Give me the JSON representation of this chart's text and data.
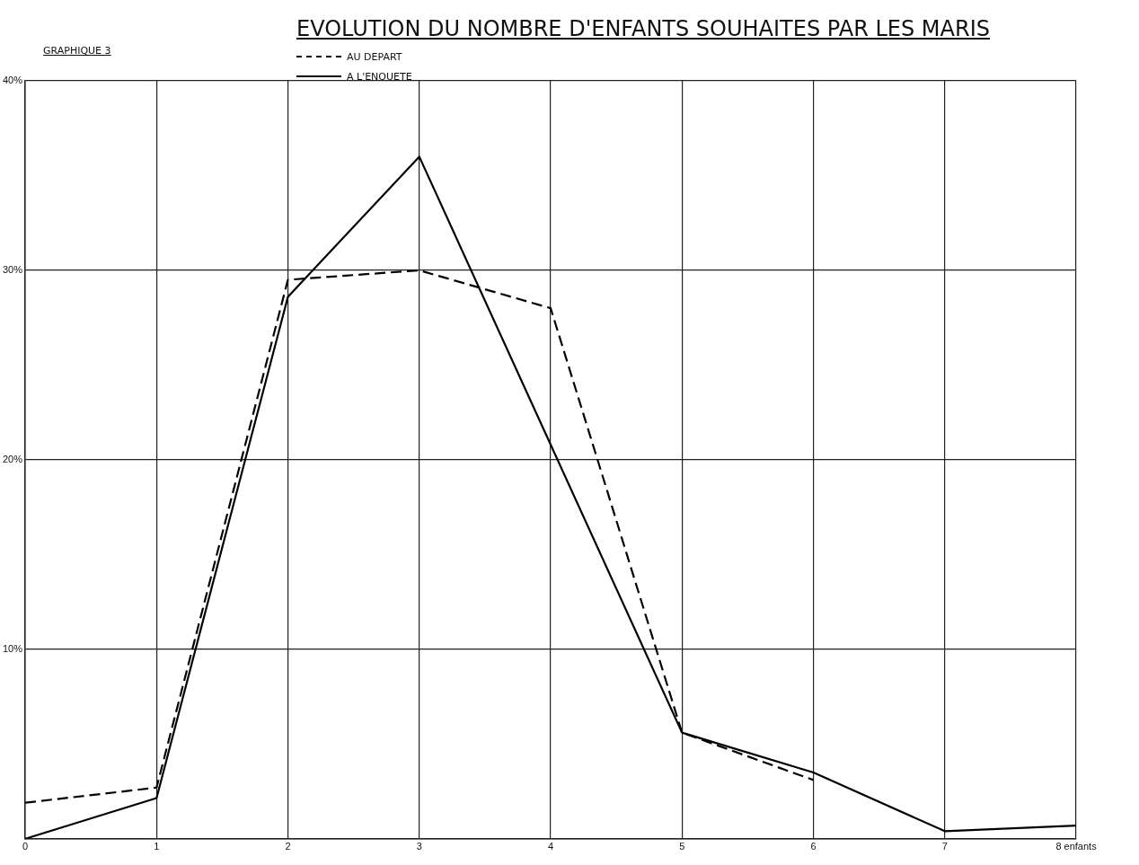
{
  "chart_data": {
    "type": "line",
    "title": "EVOLUTION DU NOMBRE D'ENFANTS SOUHAITES PAR LES MARIS",
    "annotations": [
      "GRAPHIQUE 3"
    ],
    "x": [
      0,
      1,
      2,
      3,
      4,
      5,
      6,
      7,
      8
    ],
    "series": [
      {
        "name": "AU DEPART",
        "color": "#000000",
        "line_style": "dashed",
        "values": [
          1.9,
          2.7,
          29.5,
          30.0,
          28.0,
          5.6,
          3.1,
          null,
          null
        ]
      },
      {
        "name": "A L'ENQUETE",
        "color": "#000000",
        "line_style": "solid",
        "values": [
          0,
          2.15,
          28.6,
          36.0,
          20.8,
          5.6,
          3.5,
          0.4,
          0.7
        ]
      }
    ],
    "xlim": [
      0,
      8
    ],
    "xticks": [
      0,
      1,
      2,
      3,
      4,
      5,
      6,
      7,
      {
        "value": 8,
        "label": "8 enfants"
      }
    ],
    "ylim": [
      0,
      40
    ],
    "yticks": [
      {
        "value": 0,
        "label": null
      },
      {
        "value": 10,
        "label": "10%"
      },
      {
        "value": 20,
        "label": "20%"
      },
      {
        "value": 30,
        "label": "30%"
      },
      {
        "value": 40,
        "label": "40%"
      }
    ],
    "grid": true,
    "legend": "top left",
    "marker": "none"
  }
}
